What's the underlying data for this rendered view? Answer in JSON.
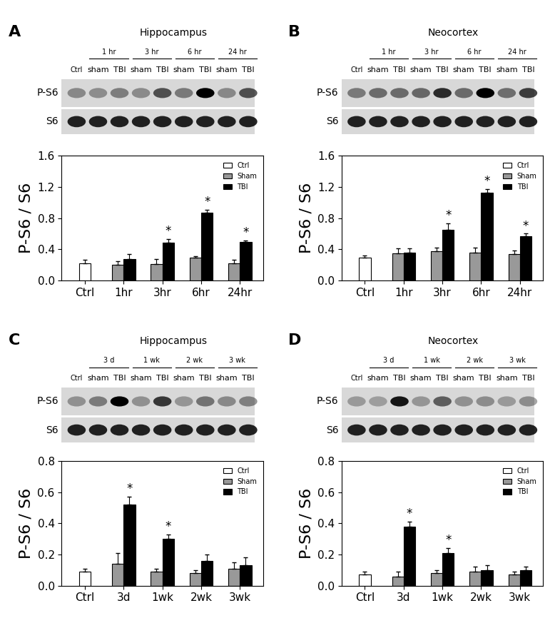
{
  "chart_data": [
    {
      "type": "bar",
      "label": "A",
      "title": "Hippocampus",
      "blot": {
        "rows": [
          "P-S6",
          "S6"
        ],
        "control_lane": "Ctrl",
        "lanes": [
          "sham",
          "TBI"
        ],
        "times": [
          "1 hr",
          "3 hr",
          "6 hr",
          "24 hr"
        ]
      },
      "y_label": "P-S6 / S6",
      "categories": [
        "Ctrl",
        "1hr",
        "3hr",
        "6hr",
        "24hr"
      ],
      "series": [
        {
          "name": "Ctrl",
          "color": "#ffffff",
          "values": [
            0.22,
            null,
            null,
            null,
            null
          ],
          "errors": [
            0.04,
            null,
            null,
            null,
            null
          ]
        },
        {
          "name": "Sham",
          "color": "#999999",
          "values": [
            null,
            0.2,
            0.21,
            0.29,
            0.22
          ],
          "errors": [
            null,
            0.05,
            0.06,
            0.02,
            0.04
          ]
        },
        {
          "name": "TBI",
          "color": "#000000",
          "values": [
            null,
            0.27,
            0.48,
            0.87,
            0.49
          ],
          "errors": [
            null,
            0.07,
            0.05,
            0.04,
            0.02
          ]
        }
      ],
      "annotations": [
        {
          "series": "TBI",
          "category": "3hr",
          "text": "*"
        },
        {
          "series": "TBI",
          "category": "6hr",
          "text": "*"
        },
        {
          "series": "TBI",
          "category": "24hr",
          "text": "*"
        }
      ],
      "ylim": [
        0,
        1.6
      ],
      "yticks": [
        {
          "value": 0,
          "label": "0.0"
        },
        0.4,
        0.8,
        1.2,
        1.6
      ],
      "legend": "upper right"
    },
    {
      "type": "bar",
      "label": "B",
      "title": "Neocortex",
      "blot": {
        "rows": [
          "P-S6",
          "S6"
        ],
        "control_lane": "Ctrl",
        "lanes": [
          "sham",
          "TBI"
        ],
        "times": [
          "1 hr",
          "3 hr",
          "6 hr",
          "24 hr"
        ]
      },
      "y_label": "P-S6 / S6",
      "categories": [
        "Ctrl",
        "1hr",
        "3hr",
        "6hr",
        "24hr"
      ],
      "series": [
        {
          "name": "Ctrl",
          "color": "#ffffff",
          "values": [
            0.29,
            null,
            null,
            null,
            null
          ],
          "errors": [
            0.03,
            null,
            null,
            null,
            null
          ]
        },
        {
          "name": "Sham",
          "color": "#999999",
          "values": [
            null,
            0.35,
            0.37,
            0.36,
            0.34
          ],
          "errors": [
            null,
            0.06,
            0.05,
            0.06,
            0.04
          ]
        },
        {
          "name": "TBI",
          "color": "#000000",
          "values": [
            null,
            0.36,
            0.65,
            1.13,
            0.57
          ],
          "errors": [
            null,
            0.05,
            0.08,
            0.04,
            0.03
          ]
        }
      ],
      "annotations": [
        {
          "series": "TBI",
          "category": "3hr",
          "text": "*"
        },
        {
          "series": "TBI",
          "category": "6hr",
          "text": "*"
        },
        {
          "series": "TBI",
          "category": "24hr",
          "text": "*"
        }
      ],
      "ylim": [
        0,
        1.6
      ],
      "yticks": [
        {
          "value": 0,
          "label": "0.0"
        },
        0.4,
        0.8,
        1.2,
        1.6
      ],
      "legend": "upper right"
    },
    {
      "type": "bar",
      "label": "C",
      "title": "Hippocampus",
      "blot": {
        "rows": [
          "P-S6",
          "S6"
        ],
        "control_lane": "Ctrl",
        "lanes": [
          "sham",
          "TBI"
        ],
        "times": [
          "3 d",
          "1 wk",
          "2 wk",
          "3 wk"
        ]
      },
      "y_label": "P-S6 / S6",
      "categories": [
        "Ctrl",
        "3d",
        "1wk",
        "2wk",
        "3wk"
      ],
      "series": [
        {
          "name": "Ctrl",
          "color": "#ffffff",
          "values": [
            0.09,
            null,
            null,
            null,
            null
          ],
          "errors": [
            0.02,
            null,
            null,
            null,
            null
          ]
        },
        {
          "name": "Sham",
          "color": "#999999",
          "values": [
            null,
            0.14,
            0.09,
            0.08,
            0.11
          ],
          "errors": [
            null,
            0.07,
            0.02,
            0.02,
            0.04
          ]
        },
        {
          "name": "TBI",
          "color": "#000000",
          "values": [
            null,
            0.52,
            0.3,
            0.16,
            0.13
          ],
          "errors": [
            null,
            0.05,
            0.03,
            0.04,
            0.05
          ]
        }
      ],
      "annotations": [
        {
          "series": "TBI",
          "category": "3d",
          "text": "*"
        },
        {
          "series": "TBI",
          "category": "1wk",
          "text": "*"
        }
      ],
      "ylim": [
        0,
        0.8
      ],
      "yticks": [
        {
          "value": 0,
          "label": "0.0"
        },
        0.2,
        0.4,
        0.6,
        0.8
      ],
      "legend": "upper right"
    },
    {
      "type": "bar",
      "label": "D",
      "title": "Neocortex",
      "blot": {
        "rows": [
          "P-S6",
          "S6"
        ],
        "control_lane": "Ctrl",
        "lanes": [
          "sham",
          "TBI"
        ],
        "times": [
          "3 d",
          "1 wk",
          "2 wk",
          "3 wk"
        ]
      },
      "y_label": "P-S6 / S6",
      "categories": [
        "Ctrl",
        "3d",
        "1wk",
        "2wk",
        "3wk"
      ],
      "series": [
        {
          "name": "Ctrl",
          "color": "#ffffff",
          "values": [
            0.07,
            null,
            null,
            null,
            null
          ],
          "errors": [
            0.02,
            null,
            null,
            null,
            null
          ]
        },
        {
          "name": "Sham",
          "color": "#999999",
          "values": [
            null,
            0.06,
            0.08,
            0.09,
            0.07
          ],
          "errors": [
            null,
            0.03,
            0.02,
            0.03,
            0.02
          ]
        },
        {
          "name": "TBI",
          "color": "#000000",
          "values": [
            null,
            0.38,
            0.21,
            0.1,
            0.1
          ],
          "errors": [
            null,
            0.03,
            0.03,
            0.03,
            0.02
          ]
        }
      ],
      "annotations": [
        {
          "series": "TBI",
          "category": "3d",
          "text": "*"
        },
        {
          "series": "TBI",
          "category": "1wk",
          "text": "*"
        }
      ],
      "ylim": [
        0,
        0.8
      ],
      "yticks": [
        {
          "value": 0,
          "label": "0.0"
        },
        0.2,
        0.4,
        0.6,
        0.8
      ],
      "legend": "upper right"
    }
  ]
}
